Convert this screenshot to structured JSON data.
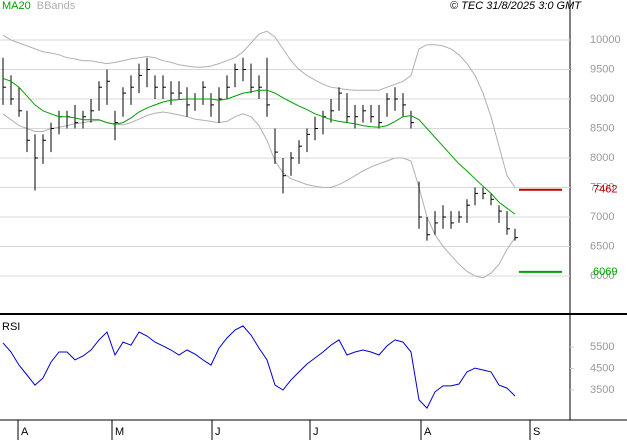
{
  "copyright": "© TEC 31/8/2025 3:0 GMT",
  "chart_data": [
    {
      "type": "ohlc",
      "color": "#000000",
      "grid": true,
      "xlim": [
        -0.375,
        70.875
      ],
      "ylim": [
        5373,
        10678
      ],
      "yticks": [
        6000,
        6500,
        7000,
        7500,
        8000,
        8500,
        9000,
        9500,
        10000
      ],
      "high": [
        9700,
        9400,
        9200,
        8800,
        8400,
        8400,
        8600,
        8800,
        8800,
        8900,
        8800,
        9000,
        9300,
        9500,
        8800,
        9200,
        9400,
        9600,
        9700,
        9400,
        9400,
        9300,
        9300,
        9200,
        9100,
        9300,
        9100,
        9200,
        9400,
        9600,
        9700,
        9600,
        9400,
        9700,
        8500,
        8000,
        8100,
        8300,
        8500,
        8700,
        8800,
        9000,
        9200,
        9100,
        8900,
        8900,
        8900,
        8900,
        9100,
        9200,
        9100,
        8800,
        7600,
        7000,
        7100,
        7200,
        7100,
        7100,
        7300,
        7500,
        7500,
        7400,
        7200,
        7100,
        6800
      ],
      "low": [
        8900,
        8900,
        8700,
        8100,
        7450,
        7900,
        8100,
        8400,
        8500,
        8500,
        8500,
        8600,
        8800,
        8900,
        8300,
        8700,
        8900,
        9100,
        9200,
        9000,
        9000,
        8900,
        9000,
        8700,
        8800,
        8900,
        8700,
        8600,
        9000,
        9200,
        9300,
        9100,
        9000,
        8700,
        7900,
        7400,
        7700,
        7900,
        8100,
        8300,
        8400,
        8600,
        8800,
        8600,
        8500,
        8600,
        8600,
        8500,
        8700,
        8800,
        8700,
        8500,
        6800,
        6600,
        6700,
        6800,
        6800,
        6900,
        6900,
        7200,
        7300,
        7200,
        6900,
        6700,
        6600
      ],
      "close": [
        9200,
        9000,
        8800,
        8300,
        8000,
        8300,
        8500,
        8700,
        8700,
        8600,
        8700,
        8800,
        9200,
        9300,
        8600,
        9100,
        9200,
        9400,
        9500,
        9200,
        9200,
        9100,
        9100,
        8900,
        9000,
        9200,
        8900,
        9000,
        9200,
        9500,
        9500,
        9200,
        9200,
        8900,
        8100,
        7700,
        8000,
        8200,
        8400,
        8500,
        8700,
        8800,
        9100,
        8700,
        8700,
        8800,
        8700,
        8600,
        9000,
        9000,
        8900,
        8600,
        7000,
        6700,
        6900,
        7000,
        6900,
        7000,
        7200,
        7400,
        7400,
        7300,
        7100,
        6800,
        6650
      ],
      "series": [
        {
          "name": "MA20",
          "color": "#00a000",
          "values": [
            9350,
            9300,
            9200,
            9050,
            8900,
            8800,
            8750,
            8700,
            8700,
            8680,
            8650,
            8650,
            8650,
            8600,
            8570,
            8600,
            8680,
            8780,
            8850,
            8900,
            8950,
            8980,
            8990,
            9000,
            9000,
            9000,
            9000,
            8980,
            9000,
            9050,
            9100,
            9120,
            9150,
            9150,
            9100,
            9020,
            8950,
            8880,
            8820,
            8750,
            8700,
            8650,
            8620,
            8600,
            8580,
            8550,
            8530,
            8520,
            8550,
            8620,
            8700,
            8720,
            8650,
            8500,
            8350,
            8200,
            8050,
            7900,
            7780,
            7650,
            7520,
            7400,
            7250,
            7150,
            7050
          ]
        },
        {
          "name": "BBands",
          "color": "#b0b0b0",
          "upper": [
            10080,
            10000,
            9950,
            9900,
            9850,
            9800,
            9780,
            9750,
            9700,
            9680,
            9650,
            9650,
            9620,
            9600,
            9620,
            9650,
            9680,
            9700,
            9720,
            9700,
            9650,
            9620,
            9580,
            9560,
            9540,
            9540,
            9560,
            9600,
            9650,
            9700,
            9800,
            9950,
            10100,
            10150,
            10050,
            9850,
            9650,
            9500,
            9400,
            9320,
            9250,
            9200,
            9180,
            9160,
            9150,
            9150,
            9150,
            9150,
            9200,
            9250,
            9300,
            9400,
            9850,
            9920,
            9920,
            9900,
            9850,
            9750,
            9600,
            9400,
            9100,
            8700,
            8200,
            7700,
            7500
          ],
          "lower": [
            8750,
            8650,
            8550,
            8500,
            8450,
            8450,
            8500,
            8520,
            8550,
            8580,
            8600,
            8620,
            8640,
            8600,
            8580,
            8560,
            8600,
            8660,
            8720,
            8760,
            8780,
            8760,
            8730,
            8700,
            8660,
            8640,
            8620,
            8600,
            8620,
            8700,
            8750,
            8700,
            8550,
            8300,
            7950,
            7750,
            7650,
            7600,
            7550,
            7520,
            7500,
            7500,
            7550,
            7620,
            7700,
            7780,
            7850,
            7900,
            7950,
            8000,
            8000,
            7950,
            7500,
            7000,
            6700,
            6500,
            6350,
            6200,
            6080,
            6000,
            5970,
            6050,
            6200,
            6450,
            6650
          ]
        }
      ],
      "levels": [
        {
          "value": 7462,
          "color": "#c00000"
        },
        {
          "value": 6069,
          "color": "#00a000"
        }
      ]
    },
    {
      "type": "line",
      "title": "RSI",
      "xlim": [
        -0.375,
        70.875
      ],
      "ylim": [
        2105,
        6756
      ],
      "yticks": [
        3500,
        4500,
        5500
      ],
      "xticks": [
        {
          "value": 1.875,
          "label": "A"
        },
        {
          "value": 13.625,
          "label": "M"
        },
        {
          "value": 26.125,
          "label": "J"
        },
        {
          "value": 38.375,
          "label": "J"
        },
        {
          "value": 52.25,
          "label": "A"
        },
        {
          "value": 65.875,
          "label": "S"
        }
      ],
      "series": [
        {
          "color": "#0000cc",
          "values": [
            5690,
            5270,
            4660,
            4200,
            3730,
            4060,
            4800,
            5270,
            5270,
            4900,
            5080,
            5360,
            5830,
            6200,
            5130,
            5730,
            5590,
            6200,
            6010,
            5730,
            5550,
            5360,
            5130,
            5360,
            5170,
            4900,
            4660,
            5450,
            5920,
            6290,
            6480,
            6060,
            5450,
            4900,
            3730,
            3500,
            3970,
            4340,
            4710,
            4990,
            5270,
            5590,
            5830,
            5130,
            5270,
            5360,
            5270,
            5130,
            5550,
            5830,
            5730,
            5270,
            3040,
            2660,
            3410,
            3690,
            3690,
            3780,
            4340,
            4520,
            4430,
            4340,
            3730,
            3590,
            3220
          ]
        }
      ]
    }
  ]
}
